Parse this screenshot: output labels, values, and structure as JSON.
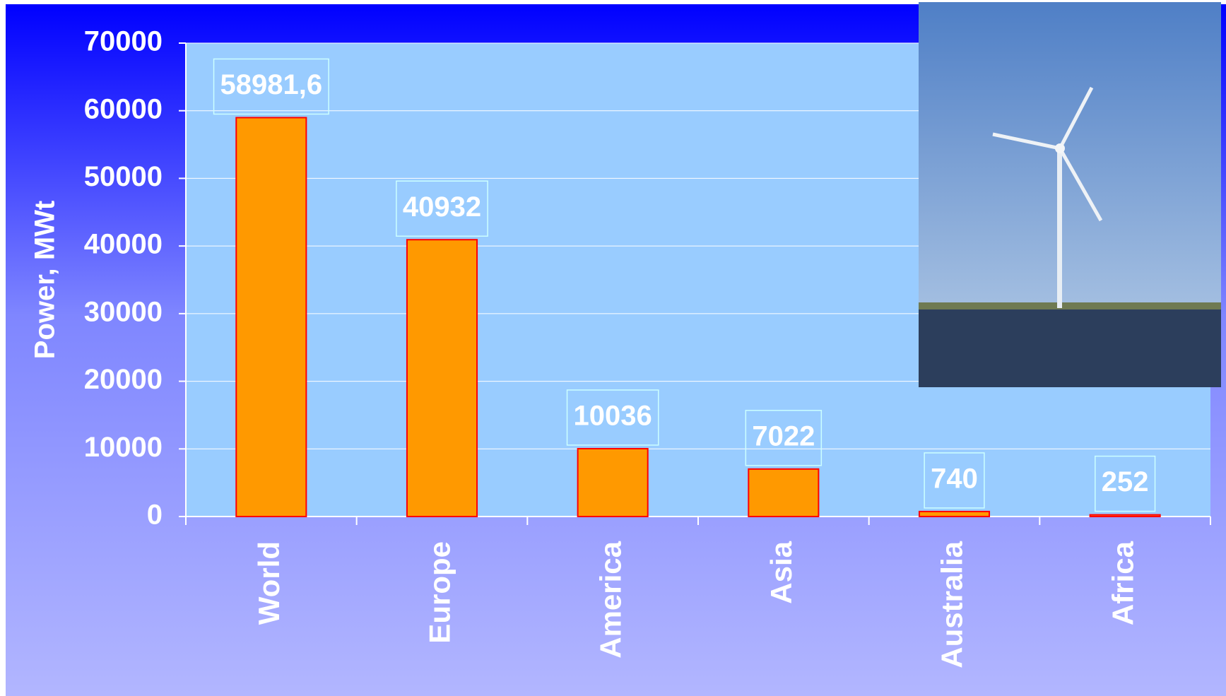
{
  "chart_data": {
    "type": "bar",
    "y_axis_label": "Power, MWt",
    "categories": [
      "World",
      "Europe",
      "America",
      "Asia",
      "Australia",
      "Africa"
    ],
    "values": [
      58981.6,
      40932,
      10036,
      7022,
      740,
      252
    ],
    "value_labels": [
      "58981,6",
      "40932",
      "10036",
      "7022",
      "740",
      "252"
    ],
    "color": "#ff9900",
    "ylim": [
      0,
      70000
    ],
    "yticks": [
      0,
      10000,
      20000,
      30000,
      40000,
      50000,
      60000,
      70000
    ],
    "grid": true
  }
}
